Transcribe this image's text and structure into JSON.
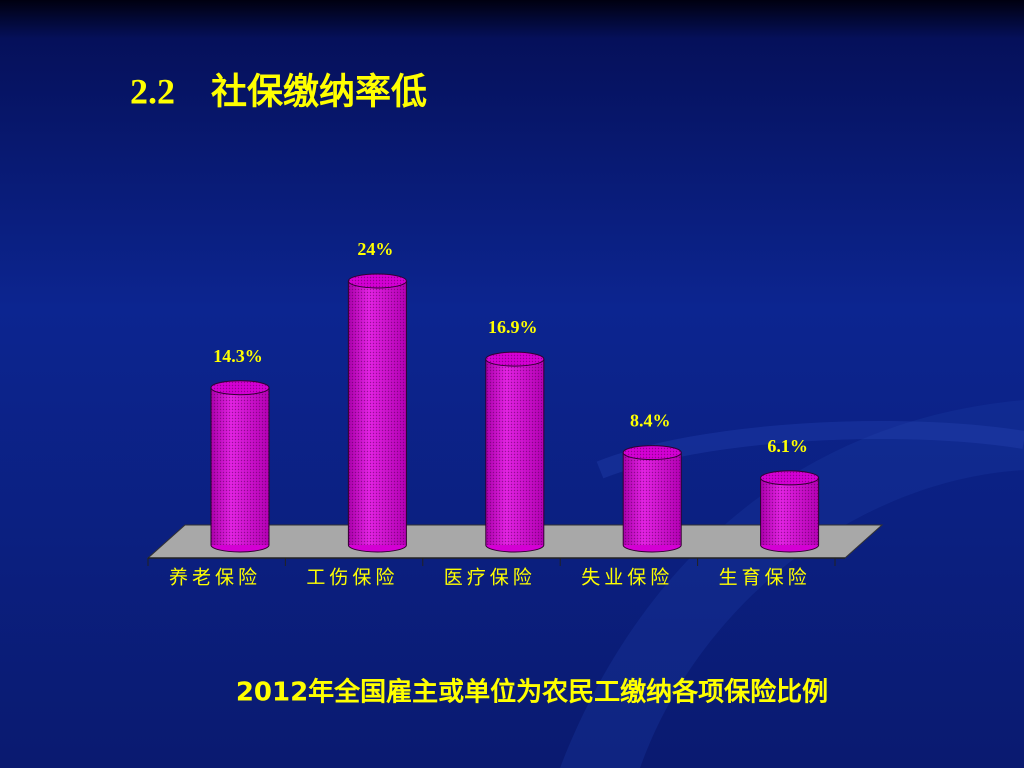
{
  "chart_data": {
    "type": "bar",
    "title": "2.2　社保缴纳率低",
    "caption": "2012年全国雇主或单位为农民工缴纳各项保险比例",
    "categories": [
      "养老保险",
      "工伤保险",
      "医疗保险",
      "失业保险",
      "生育保险"
    ],
    "values": [
      14.3,
      24,
      16.9,
      8.4,
      6.1
    ],
    "value_labels": [
      "14.3%",
      "24%",
      "16.9%",
      "8.4%",
      "6.1%"
    ],
    "color": "#d400d4"
  }
}
